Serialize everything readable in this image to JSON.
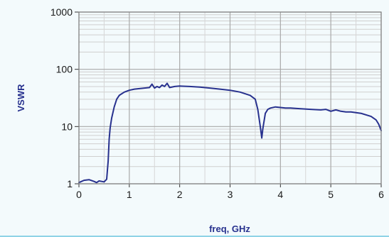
{
  "chart_data": {
    "type": "line",
    "xlabel": "freq, GHz",
    "ylabel": "VSWR",
    "x_scale": "linear",
    "y_scale": "log",
    "xlim": [
      0,
      6
    ],
    "ylim": [
      1,
      1000
    ],
    "x_ticks": [
      "0",
      "1",
      "2",
      "3",
      "4",
      "5",
      "6"
    ],
    "y_ticks": [
      "1",
      "10",
      "100",
      "1000"
    ],
    "grid": true,
    "line_color": "#27318e",
    "series": [
      {
        "x": [
          0.0,
          0.1,
          0.2,
          0.3,
          0.35,
          0.4,
          0.5,
          0.55,
          0.58,
          0.6,
          0.62,
          0.65,
          0.7,
          0.75,
          0.8,
          0.9,
          1.0,
          1.1,
          1.2,
          1.3,
          1.4,
          1.45,
          1.5,
          1.55,
          1.6,
          1.65,
          1.7,
          1.75,
          1.8,
          1.9,
          2.0,
          2.2,
          2.4,
          2.6,
          2.8,
          3.0,
          3.2,
          3.4,
          3.5,
          3.55,
          3.6,
          3.63,
          3.65,
          3.7,
          3.75,
          3.8,
          3.9,
          4.0,
          4.1,
          4.2,
          4.4,
          4.6,
          4.8,
          4.9,
          5.0,
          5.1,
          5.2,
          5.3,
          5.4,
          5.6,
          5.8,
          5.9,
          5.95,
          6.0
        ],
        "y": [
          1.05,
          1.15,
          1.18,
          1.1,
          1.05,
          1.12,
          1.08,
          1.2,
          2.5,
          6.0,
          9.5,
          14.0,
          22.0,
          30.0,
          35.0,
          40.0,
          43.0,
          45.0,
          46.0,
          47.0,
          48.0,
          55.0,
          47.0,
          50.0,
          48.0,
          53.0,
          50.0,
          57.0,
          48.0,
          50.0,
          51.0,
          50.0,
          49.0,
          47.0,
          45.0,
          43.0,
          40.0,
          35.0,
          30.0,
          20.0,
          10.0,
          6.3,
          9.0,
          17.0,
          20.0,
          21.0,
          22.0,
          21.5,
          21.0,
          21.0,
          20.5,
          20.0,
          19.5,
          20.0,
          18.5,
          19.5,
          18.5,
          18.0,
          18.0,
          17.0,
          15.0,
          13.0,
          11.0,
          8.5
        ]
      }
    ]
  }
}
